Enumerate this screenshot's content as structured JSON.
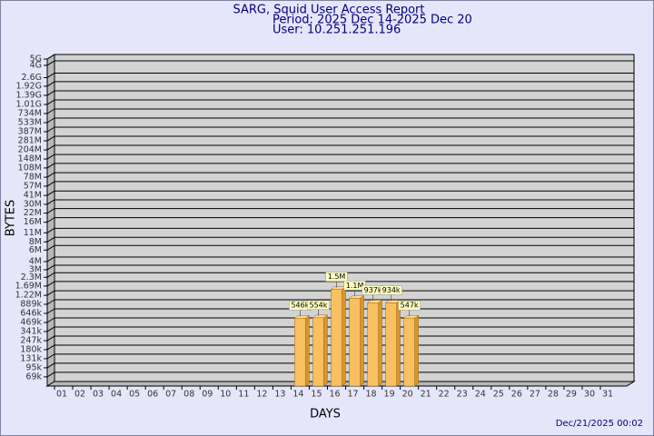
{
  "chart_data": {
    "type": "bar",
    "title": "SARG, Squid User Access Report",
    "subtitle": "Period: 2025 Dec 14-2025 Dec 20",
    "user": "User: 10.251.251.196",
    "x_label": "DAYS",
    "y_label": "BYTES",
    "footer": "Dec/21/2025 00:02",
    "log_scale": true,
    "grid": true,
    "color": "#f8c060",
    "categories": [
      "01",
      "02",
      "03",
      "04",
      "05",
      "06",
      "07",
      "08",
      "09",
      "10",
      "11",
      "12",
      "13",
      "14",
      "15",
      "16",
      "17",
      "18",
      "19",
      "20",
      "21",
      "22",
      "23",
      "24",
      "25",
      "26",
      "27",
      "28",
      "29",
      "30",
      "31"
    ],
    "values": [
      null,
      null,
      null,
      null,
      null,
      null,
      null,
      null,
      null,
      null,
      null,
      null,
      null,
      546000,
      554000,
      1500000,
      1100000,
      937000,
      934000,
      547000,
      null,
      null,
      null,
      null,
      null,
      null,
      null,
      null,
      null,
      null,
      null
    ],
    "value_labels": [
      null,
      null,
      null,
      null,
      null,
      null,
      null,
      null,
      null,
      null,
      null,
      null,
      null,
      "546k",
      "554k",
      "1.5M",
      "1.1M",
      "937k",
      "934k",
      "547k",
      null,
      null,
      null,
      null,
      null,
      null,
      null,
      null,
      null,
      null,
      null
    ],
    "ylim": [
      50000,
      5000000000
    ],
    "yticks": [
      {
        "value": 69000,
        "label": "69k"
      },
      {
        "value": 95000,
        "label": "95k"
      },
      {
        "value": 131000,
        "label": "131k"
      },
      {
        "value": 180000,
        "label": "180k"
      },
      {
        "value": 247000,
        "label": "247k"
      },
      {
        "value": 341000,
        "label": "341k"
      },
      {
        "value": 469000,
        "label": "469k"
      },
      {
        "value": 646000,
        "label": "646k"
      },
      {
        "value": 889000,
        "label": "889k"
      },
      {
        "value": 1220000,
        "label": "1.22M"
      },
      {
        "value": 1690000,
        "label": "1.69M"
      },
      {
        "value": 2300000,
        "label": "2.3M"
      },
      {
        "value": 3000000,
        "label": "3M"
      },
      {
        "value": 4000000,
        "label": "4M"
      },
      {
        "value": 6000000,
        "label": "6M"
      },
      {
        "value": 8000000,
        "label": "8M"
      },
      {
        "value": 11000000,
        "label": "11M"
      },
      {
        "value": 16000000,
        "label": "16M"
      },
      {
        "value": 22000000,
        "label": "22M"
      },
      {
        "value": 30000000,
        "label": "30M"
      },
      {
        "value": 41000000,
        "label": "41M"
      },
      {
        "value": 57000000,
        "label": "57M"
      },
      {
        "value": 78000000,
        "label": "78M"
      },
      {
        "value": 108000000,
        "label": "108M"
      },
      {
        "value": 148000000,
        "label": "148M"
      },
      {
        "value": 204000000,
        "label": "204M"
      },
      {
        "value": 281000000,
        "label": "281M"
      },
      {
        "value": 387000000,
        "label": "387M"
      },
      {
        "value": 533000000,
        "label": "533M"
      },
      {
        "value": 734000000,
        "label": "734M"
      },
      {
        "value": 1010000000,
        "label": "1.01G"
      },
      {
        "value": 1390000000,
        "label": "1.39G"
      },
      {
        "value": 1920000000,
        "label": "1.92G"
      },
      {
        "value": 2600000000,
        "label": "2.6G"
      },
      {
        "value": 4000000000,
        "label": "4G"
      },
      {
        "value": 5000000000,
        "label": "5G"
      }
    ]
  }
}
